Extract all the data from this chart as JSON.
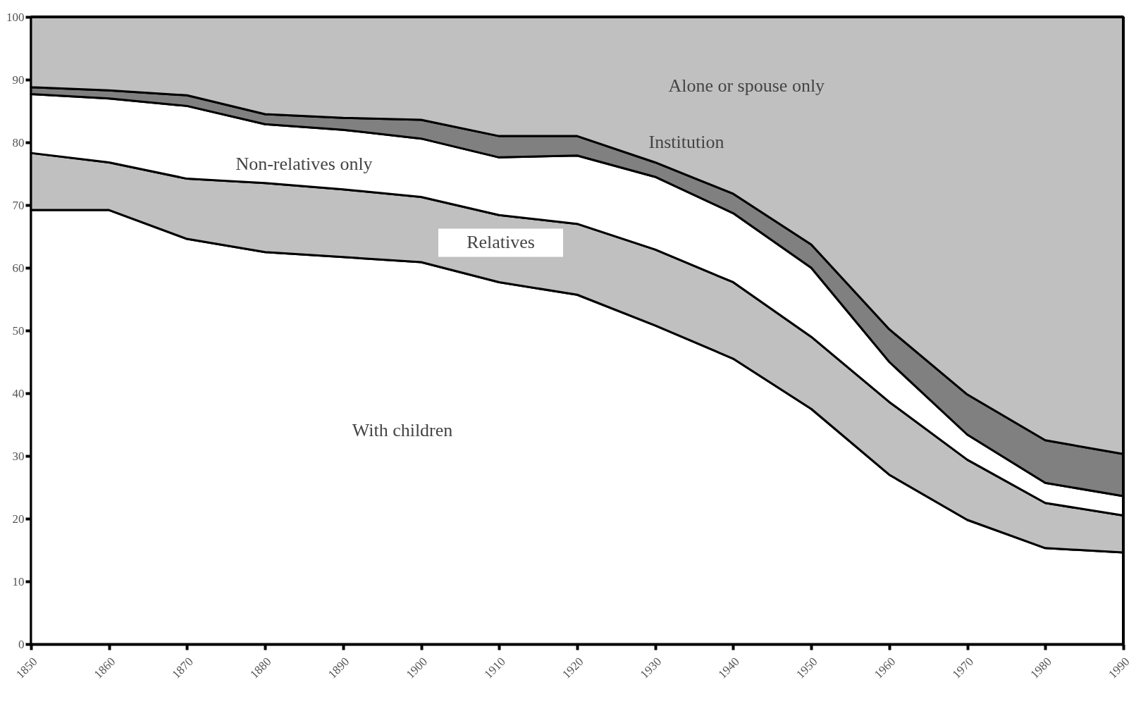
{
  "chart_data": {
    "type": "area",
    "stacked": true,
    "x": [
      1850,
      1860,
      1870,
      1880,
      1890,
      1900,
      1910,
      1920,
      1930,
      1940,
      1950,
      1960,
      1970,
      1980,
      1990
    ],
    "series": [
      {
        "name": "With children",
        "color": "#ffffff",
        "values": [
          69.2,
          69.2,
          64.6,
          62.5,
          61.7,
          60.9,
          57.7,
          55.7,
          50.8,
          45.5,
          37.5,
          27,
          19.8,
          15.3,
          14.6
        ]
      },
      {
        "name": "Relatives",
        "color": "#c0c0c0",
        "values": [
          9.1,
          7.6,
          9.6,
          11,
          10.8,
          10.4,
          10.7,
          11.3,
          12.1,
          12.2,
          11.5,
          11.6,
          9.6,
          7.2,
          5.9
        ]
      },
      {
        "name": "Non-relatives only",
        "color": "#ffffff",
        "values": [
          9.4,
          10.2,
          11.6,
          9.4,
          9.5,
          9.3,
          9.2,
          10.9,
          11.6,
          11,
          11,
          6.4,
          4,
          3.2,
          3.1
        ]
      },
      {
        "name": "Institution",
        "color": "#808080",
        "values": [
          1.1,
          1.3,
          1.7,
          1.6,
          1.9,
          3,
          3.4,
          3.1,
          2.3,
          3.1,
          3.7,
          5.2,
          6.4,
          6.8,
          6.7
        ]
      },
      {
        "name": "Alone or spouse only",
        "color": "#c0c0c0",
        "values": [
          11.2,
          11.7,
          12.5,
          15.5,
          16.1,
          16.4,
          19,
          19,
          23.2,
          28.2,
          36.3,
          49.8,
          60.2,
          67.5,
          69.7
        ]
      }
    ],
    "xlim": [
      1850,
      1990
    ],
    "xticks": [
      1850,
      1860,
      1870,
      1880,
      1890,
      1900,
      1910,
      1920,
      1930,
      1940,
      1950,
      1960,
      1970,
      1980,
      1990
    ],
    "ylim": [
      0,
      100
    ],
    "yticks": [
      0,
      10,
      20,
      30,
      40,
      50,
      60,
      70,
      80,
      90,
      100
    ],
    "grid": false
  }
}
